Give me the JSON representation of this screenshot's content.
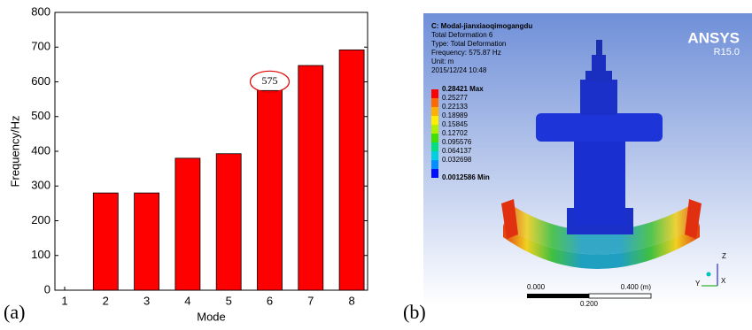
{
  "chart_data": {
    "type": "bar",
    "panel_label": "(a)",
    "xlabel": "Mode",
    "ylabel": "Frequency/Hz",
    "categories": [
      "1",
      "2",
      "3",
      "4",
      "5",
      "6",
      "7",
      "8"
    ],
    "values": [
      null,
      280,
      280,
      380,
      393,
      575,
      647,
      692
    ],
    "color": "#ff0000",
    "ylim": [
      0,
      800
    ],
    "yticks": [
      0,
      100,
      200,
      300,
      400,
      500,
      600,
      700,
      800
    ],
    "grid": false,
    "annotation": {
      "text": "575",
      "category_index": 5
    }
  },
  "panel_b": {
    "panel_label": "(b)",
    "header": [
      "C: Modal-jianxiaoqimogangdu",
      "Total Deformation 6",
      "Type: Total Deformation",
      "Frequency: 575.87 Hz",
      "Unit: m",
      "2015/12/24 10:48"
    ],
    "legend": [
      "0.28421 Max",
      "0.25277",
      "0.22133",
      "0.18989",
      "0.15845",
      "0.12702",
      "0.095576",
      "0.064137",
      "0.032698",
      "0.0012586 Min"
    ],
    "brand": "ANSYS",
    "version": "R15.0",
    "scale": {
      "left": "0.000",
      "right": "0.400 (m)",
      "middle": "0.200"
    },
    "axes": {
      "x": "X",
      "y": "Y",
      "z": "Z"
    }
  }
}
